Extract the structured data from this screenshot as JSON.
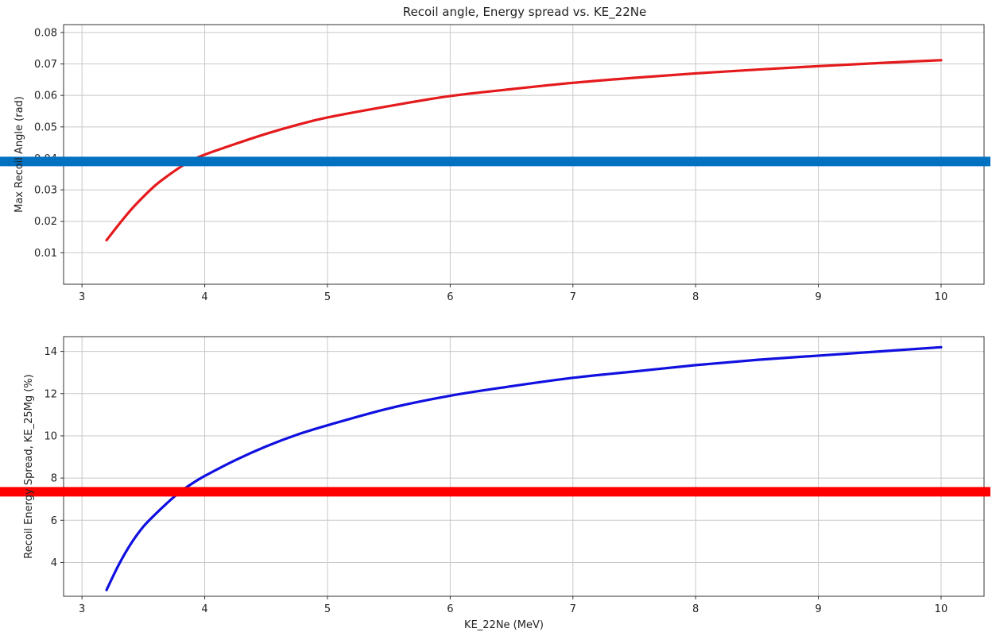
{
  "title": "Recoil angle, Energy spread vs. KE_22Ne",
  "chart_data": [
    {
      "type": "line",
      "xlabel": "",
      "ylabel": "Max Recoil Angle (rad)",
      "xlim": [
        2.85,
        10.35
      ],
      "ylim": [
        0.0,
        0.0825
      ],
      "x_ticks": [
        "3",
        "4",
        "5",
        "6",
        "7",
        "8",
        "9",
        "10"
      ],
      "y_ticks": [
        "0.01",
        "0.02",
        "0.03",
        "0.04",
        "0.05",
        "0.06",
        "0.07",
        "0.08"
      ],
      "grid": true,
      "series": [
        {
          "color": "#e41a1c",
          "x": [
            3.2,
            3.3,
            3.4,
            3.5,
            3.6,
            3.7,
            3.8,
            3.9,
            4.0,
            4.25,
            4.5,
            4.75,
            5.0,
            5.5,
            6.0,
            6.5,
            7.0,
            7.5,
            8.0,
            8.5,
            9.0,
            9.5,
            10.0
          ],
          "y": [
            0.014,
            0.019,
            0.0237,
            0.0278,
            0.0315,
            0.0345,
            0.0372,
            0.0395,
            0.0412,
            0.0446,
            0.0478,
            0.0506,
            0.053,
            0.0566,
            0.0598,
            0.062,
            0.064,
            0.0656,
            0.067,
            0.0682,
            0.0693,
            0.0703,
            0.0712
          ]
        }
      ],
      "reference_line": {
        "y": 0.039,
        "color": "#0070c0"
      }
    },
    {
      "type": "line",
      "xlabel": "KE_22Ne (MeV)",
      "ylabel": "Recoil Energy Spread, KE_25Mg (%)",
      "xlim": [
        2.85,
        10.35
      ],
      "ylim": [
        2.4,
        14.7
      ],
      "x_ticks": [
        "3",
        "4",
        "5",
        "6",
        "7",
        "8",
        "9",
        "10"
      ],
      "y_ticks": [
        "4",
        "6",
        "8",
        "10",
        "12",
        "14"
      ],
      "grid": true,
      "series": [
        {
          "color": "#1010e0",
          "x": [
            3.2,
            3.3,
            3.4,
            3.5,
            3.6,
            3.7,
            3.8,
            3.9,
            4.0,
            4.25,
            4.5,
            4.75,
            5.0,
            5.5,
            6.0,
            6.5,
            7.0,
            7.5,
            8.0,
            8.5,
            9.0,
            9.5,
            10.0
          ],
          "y": [
            2.7,
            3.9,
            4.9,
            5.7,
            6.3,
            6.85,
            7.35,
            7.75,
            8.1,
            8.85,
            9.5,
            10.05,
            10.5,
            11.3,
            11.9,
            12.35,
            12.75,
            13.05,
            13.35,
            13.6,
            13.8,
            14.0,
            14.2
          ]
        }
      ],
      "reference_line": {
        "y": 7.35,
        "color": "#ff0000"
      }
    }
  ]
}
